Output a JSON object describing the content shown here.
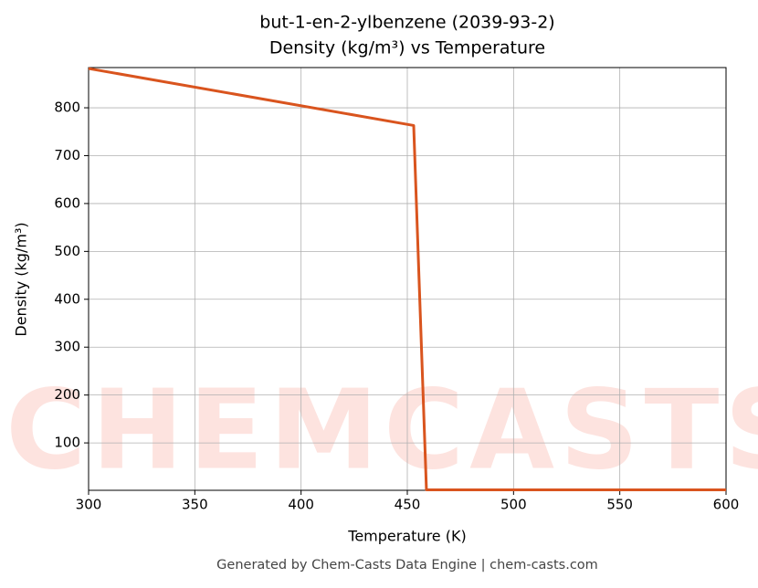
{
  "chart_data": {
    "type": "line",
    "title": "but-1-en-2-ylbenzene (2039-93-2)",
    "subtitle": "Density (kg/m³) vs Temperature",
    "xlabel": "Temperature (K)",
    "ylabel": "Density (kg/m³)",
    "footer": "Generated by Chem-Casts Data Engine | chem-casts.com",
    "watermark": "CHEMCASTS",
    "x": [
      300,
      453,
      459,
      600
    ],
    "series": [
      {
        "name": "Density",
        "color": "#d9541e",
        "values": [
          882,
          763,
          2,
          2
        ]
      }
    ],
    "xlim": [
      300,
      600
    ],
    "xticks": [
      300,
      350,
      400,
      450,
      500,
      550,
      600
    ],
    "ylim": [
      1,
      884
    ],
    "yticks": [
      100,
      200,
      300,
      400,
      500,
      600,
      700,
      800
    ],
    "grid": true
  }
}
